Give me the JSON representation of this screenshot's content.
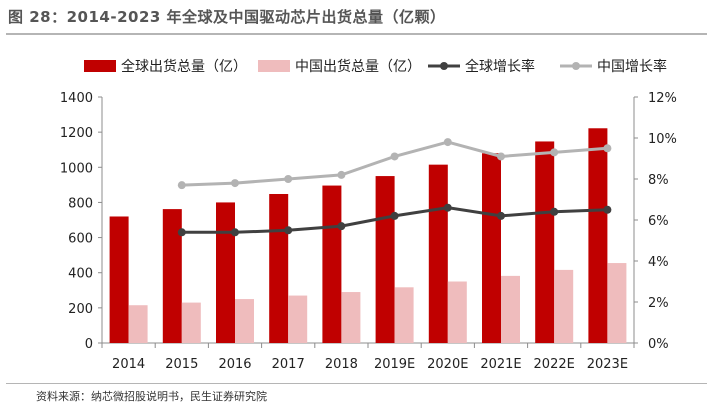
{
  "page": {
    "title": "图 28：2014-2023 年全球及中国驱动芯片出货总量（亿颗）",
    "source": "资料来源：纳芯微招股说明书，民生证券研究院"
  },
  "chart_data": {
    "type": "bar",
    "categories": [
      "2014",
      "2015",
      "2016",
      "2017",
      "2018",
      "2019E",
      "2020E",
      "2021E",
      "2022E",
      "2023E"
    ],
    "series": [
      {
        "name": "全球出货总量（亿）",
        "type": "bar",
        "axis": "left",
        "color": "#c00000",
        "values": [
          720,
          762,
          800,
          848,
          896,
          950,
          1015,
          1080,
          1147,
          1222
        ]
      },
      {
        "name": "中国出货总量（亿）",
        "type": "bar",
        "axis": "left",
        "color": "#efbcbd",
        "values": [
          215,
          230,
          250,
          270,
          290,
          317,
          350,
          382,
          416,
          455
        ]
      },
      {
        "name": "全球增长率",
        "type": "line",
        "axis": "right",
        "color": "#404040",
        "values": [
          null,
          0.054,
          0.054,
          0.055,
          0.057,
          0.062,
          0.066,
          0.062,
          0.064,
          0.065
        ]
      },
      {
        "name": "中国增长率",
        "type": "line",
        "axis": "right",
        "color": "#b3b3b3",
        "values": [
          null,
          0.077,
          0.078,
          0.08,
          0.082,
          0.091,
          0.098,
          0.091,
          0.093,
          0.095
        ]
      }
    ],
    "ylim": [
      0,
      1400
    ],
    "yticks": [
      "0",
      "200",
      "400",
      "600",
      "800",
      "1000",
      "1200",
      "1400"
    ],
    "y2lim": [
      0,
      0.12
    ],
    "y2ticks": [
      "0%",
      "2%",
      "4%",
      "6%",
      "8%",
      "10%",
      "12%"
    ],
    "legend_position": "top",
    "grid": false
  }
}
